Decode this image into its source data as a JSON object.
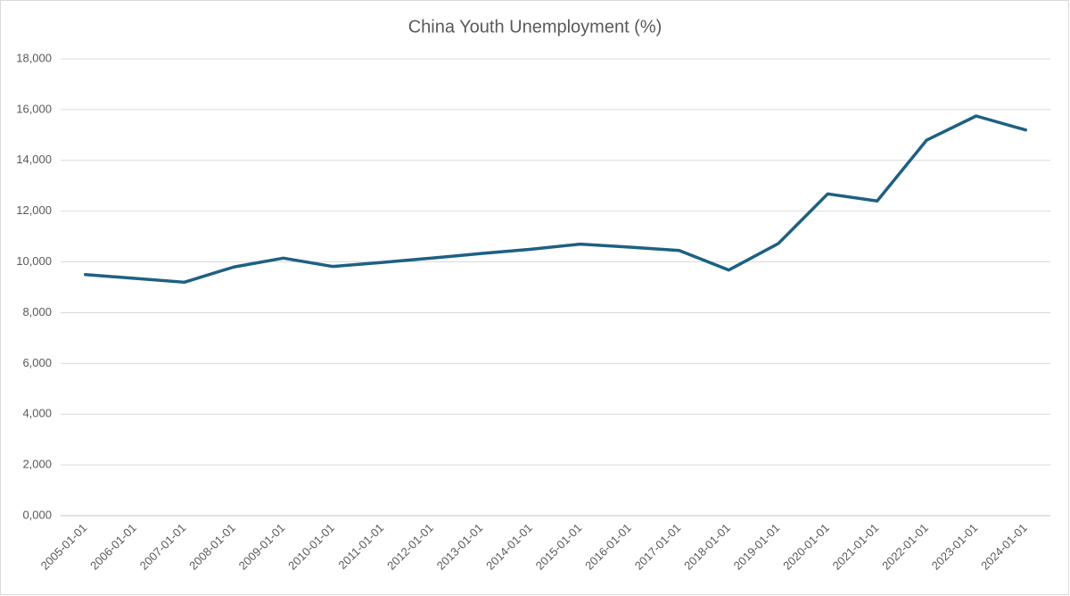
{
  "chart_data": {
    "type": "line",
    "title": "China Youth Unemployment (%)",
    "categories": [
      "2005-01-01",
      "2006-01-01",
      "2007-01-01",
      "2008-01-01",
      "2009-01-01",
      "2010-01-01",
      "2011-01-01",
      "2012-01-01",
      "2013-01-01",
      "2014-01-01",
      "2015-01-01",
      "2016-01-01",
      "2017-01-01",
      "2018-01-01",
      "2019-01-01",
      "2020-01-01",
      "2021-01-01",
      "2022-01-01",
      "2023-01-01",
      "2024-01-01"
    ],
    "values": [
      9500,
      9350,
      9200,
      9800,
      10150,
      9820,
      9980,
      10150,
      10330,
      10500,
      10700,
      10580,
      10450,
      9680,
      10720,
      12680,
      12400,
      14800,
      15750,
      15200
    ],
    "color": "#1e6082",
    "ylim": [
      0,
      18000
    ],
    "yticks": [
      {
        "value": 0,
        "label": "0,000"
      },
      {
        "value": 2000,
        "label": "2,000"
      },
      {
        "value": 4000,
        "label": "4,000"
      },
      {
        "value": 6000,
        "label": "6,000"
      },
      {
        "value": 8000,
        "label": "8,000"
      },
      {
        "value": 10000,
        "label": "10,000"
      },
      {
        "value": 12000,
        "label": "12,000"
      },
      {
        "value": 14000,
        "label": "14,000"
      },
      {
        "value": 16000,
        "label": "16,000"
      },
      {
        "value": 18000,
        "label": "18,000"
      }
    ],
    "grid": true
  }
}
